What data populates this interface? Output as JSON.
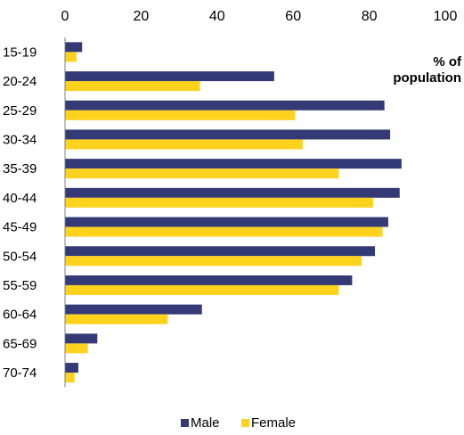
{
  "chart_data": {
    "type": "bar",
    "orientation": "horizontal",
    "categories": [
      "15-19",
      "20-24",
      "25-29",
      "30-34",
      "35-39",
      "40-44",
      "45-49",
      "50-54",
      "55-59",
      "60-64",
      "65-69",
      "70-74"
    ],
    "series": [
      {
        "name": "Male",
        "color": "#333a75",
        "values": [
          4.5,
          55,
          84,
          85.5,
          88.5,
          88,
          85,
          81.5,
          75.5,
          36,
          8.5,
          3.5
        ]
      },
      {
        "name": "Female",
        "color": "#ffd21e",
        "values": [
          3,
          35.5,
          60.5,
          62.5,
          72,
          81,
          83.5,
          78,
          72,
          27,
          6,
          2.5
        ]
      }
    ],
    "xlim": [
      0,
      100
    ],
    "x_ticks": [
      0,
      20,
      40,
      60,
      80,
      100
    ],
    "x_tick_labels": [
      "0",
      "20",
      "40",
      "60",
      "80",
      "100"
    ],
    "x_axis_position": "top",
    "unit_label": [
      "% of",
      "population"
    ],
    "grid": false,
    "legend_position": "bottom"
  }
}
